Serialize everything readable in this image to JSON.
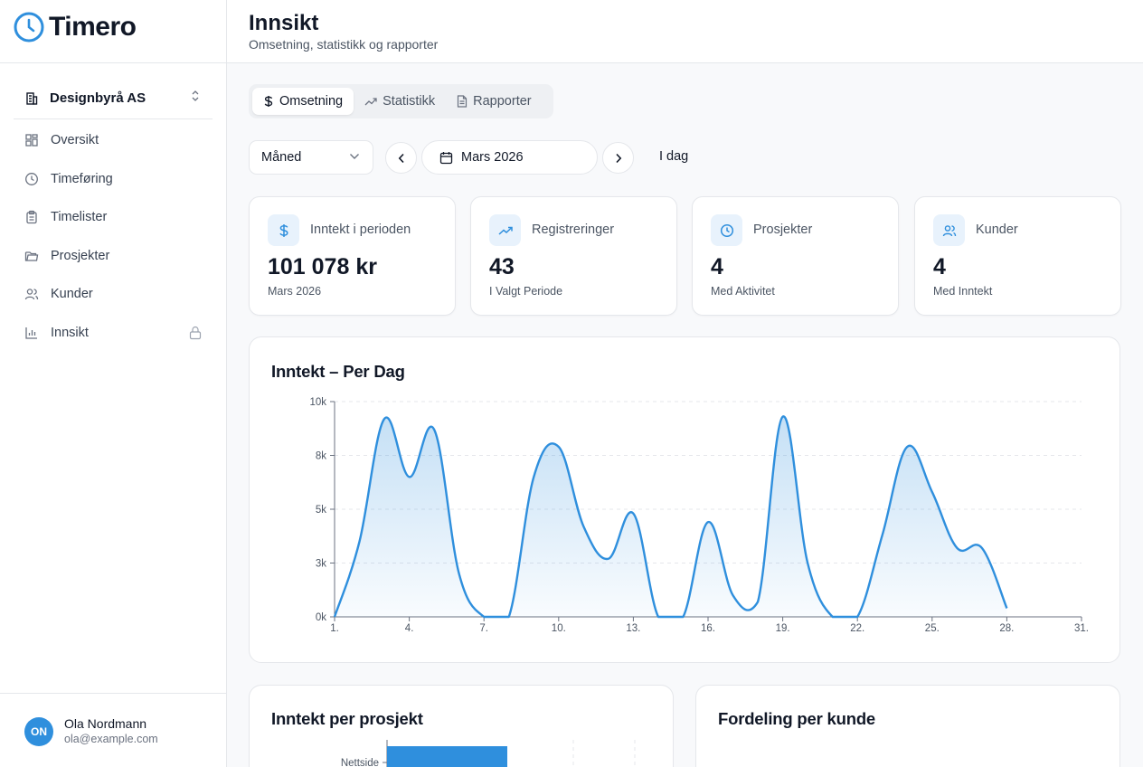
{
  "app": {
    "name": "Timero"
  },
  "org": {
    "name": "Designbyrå AS"
  },
  "nav": [
    {
      "label": "Oversikt",
      "icon": "grid-icon"
    },
    {
      "label": "Timeføring",
      "icon": "clock-icon"
    },
    {
      "label": "Timelister",
      "icon": "clipboard-icon"
    },
    {
      "label": "Prosjekter",
      "icon": "folder-icon"
    },
    {
      "label": "Kunder",
      "icon": "users-icon"
    },
    {
      "label": "Innsikt",
      "icon": "bar-chart-icon",
      "locked": true
    }
  ],
  "user": {
    "initials": "ON",
    "name": "Ola Nordmann",
    "email": "ola@example.com"
  },
  "header": {
    "title": "Innsikt",
    "subtitle": "Omsetning, statistikk og rapporter"
  },
  "tabs": [
    {
      "label": "Omsetning",
      "active": true
    },
    {
      "label": "Statistikk",
      "active": false
    },
    {
      "label": "Rapporter",
      "active": false
    }
  ],
  "period": {
    "granularity": "Måned",
    "current": "Mars 2026",
    "today_label": "I dag"
  },
  "stats": [
    {
      "label": "Inntekt i perioden",
      "value": "101 078 kr",
      "sub": "Mars 2026",
      "icon": "dollar-icon"
    },
    {
      "label": "Registreringer",
      "value": "43",
      "sub": "I Valgt Periode",
      "icon": "trending-up-icon"
    },
    {
      "label": "Prosjekter",
      "value": "4",
      "sub": "Med Aktivitet",
      "icon": "clock-icon"
    },
    {
      "label": "Kunder",
      "value": "4",
      "sub": "Med Inntekt",
      "icon": "users-icon"
    }
  ],
  "colors": {
    "accent": "#2f8fdd"
  },
  "chart_data": [
    {
      "type": "area",
      "title": "Inntekt – Per Dag",
      "x": [
        1,
        2,
        3,
        4,
        5,
        6,
        7,
        8,
        9,
        10,
        11,
        12,
        13,
        14,
        15,
        16,
        17,
        18,
        19,
        20,
        21,
        22,
        23,
        24,
        25,
        26,
        27,
        28
      ],
      "x_tick_labels": [
        "1.",
        "4.",
        "7.",
        "10.",
        "13.",
        "16.",
        "19.",
        "22.",
        "25.",
        "28.",
        "31."
      ],
      "x_ticks": [
        1,
        4,
        7,
        10,
        13,
        16,
        19,
        22,
        25,
        28,
        31
      ],
      "xlim": [
        1,
        31
      ],
      "y_ticks": [
        0,
        2500,
        5000,
        7500,
        10000
      ],
      "y_tick_labels": [
        "0k",
        "3k",
        "5k",
        "8k",
        "10k"
      ],
      "ylim": [
        0,
        10000
      ],
      "series": [
        {
          "values": [
            0,
            3500,
            9200,
            6500,
            8700,
            2000,
            0,
            0,
            6500,
            7900,
            4200,
            2700,
            4800,
            0,
            0,
            4400,
            1000,
            700,
            9300,
            2500,
            0,
            0,
            3800,
            7900,
            5800,
            3200,
            3200,
            400
          ]
        }
      ],
      "grid": true
    },
    {
      "type": "bar",
      "title": "Inntekt per prosjekt",
      "orientation": "horizontal",
      "categories": [
        "Nettside"
      ]
    }
  ],
  "panels": {
    "customer_title": "Fordeling per kunde"
  }
}
